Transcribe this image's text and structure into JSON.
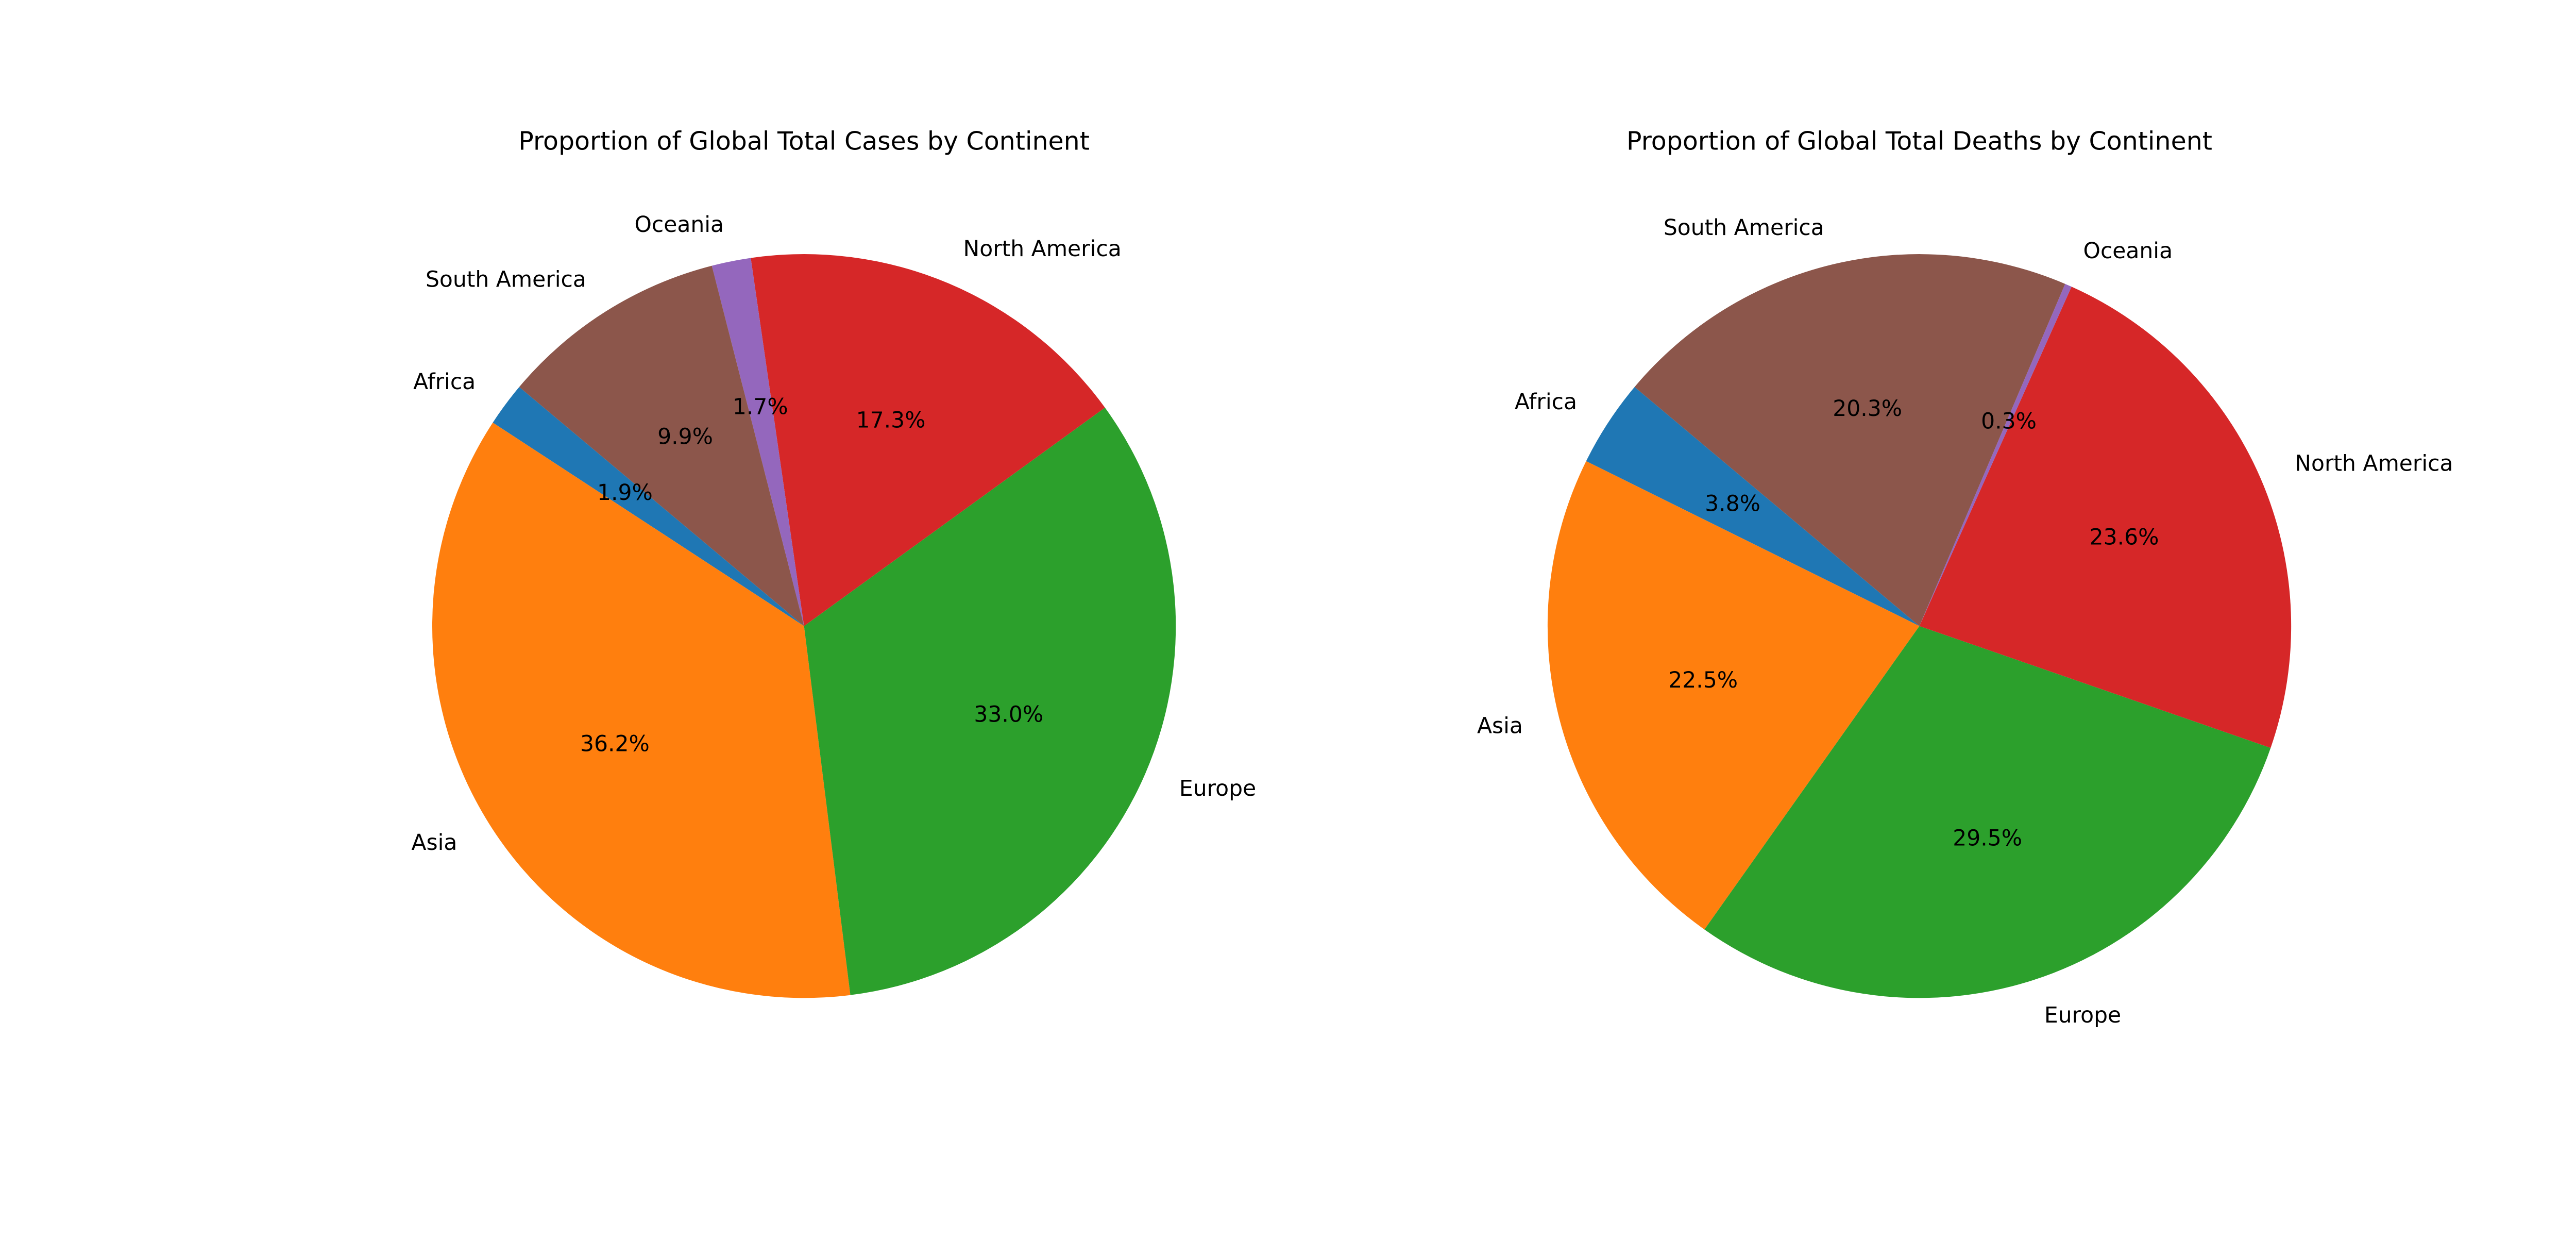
{
  "colors": {
    "Africa": "#1f77b4",
    "Asia": "#ff7f0e",
    "Europe": "#2ca02c",
    "North America": "#d62728",
    "Oceania": "#9467bd",
    "South America": "#8c564b"
  },
  "chart_data": [
    {
      "type": "pie",
      "title": "Proportion of Global Total Cases by Continent",
      "categories": [
        "Africa",
        "Asia",
        "Europe",
        "North America",
        "Oceania",
        "South America"
      ],
      "values": [
        1.9,
        36.2,
        33.0,
        17.3,
        1.7,
        9.9
      ],
      "value_labels": [
        "1.9%",
        "36.2%",
        "33.0%",
        "17.3%",
        "1.7%",
        "9.9%"
      ],
      "start_angle_deg": 140,
      "legend": "none"
    },
    {
      "type": "pie",
      "title": "Proportion of Global Total Deaths by Continent",
      "categories": [
        "Africa",
        "Asia",
        "Europe",
        "North America",
        "Oceania",
        "South America"
      ],
      "values": [
        3.8,
        22.5,
        29.5,
        23.6,
        0.3,
        20.3
      ],
      "value_labels": [
        "3.8%",
        "22.5%",
        "29.5%",
        "23.6%",
        "0.3%",
        "20.3%"
      ],
      "start_angle_deg": 140,
      "legend": "none"
    }
  ]
}
